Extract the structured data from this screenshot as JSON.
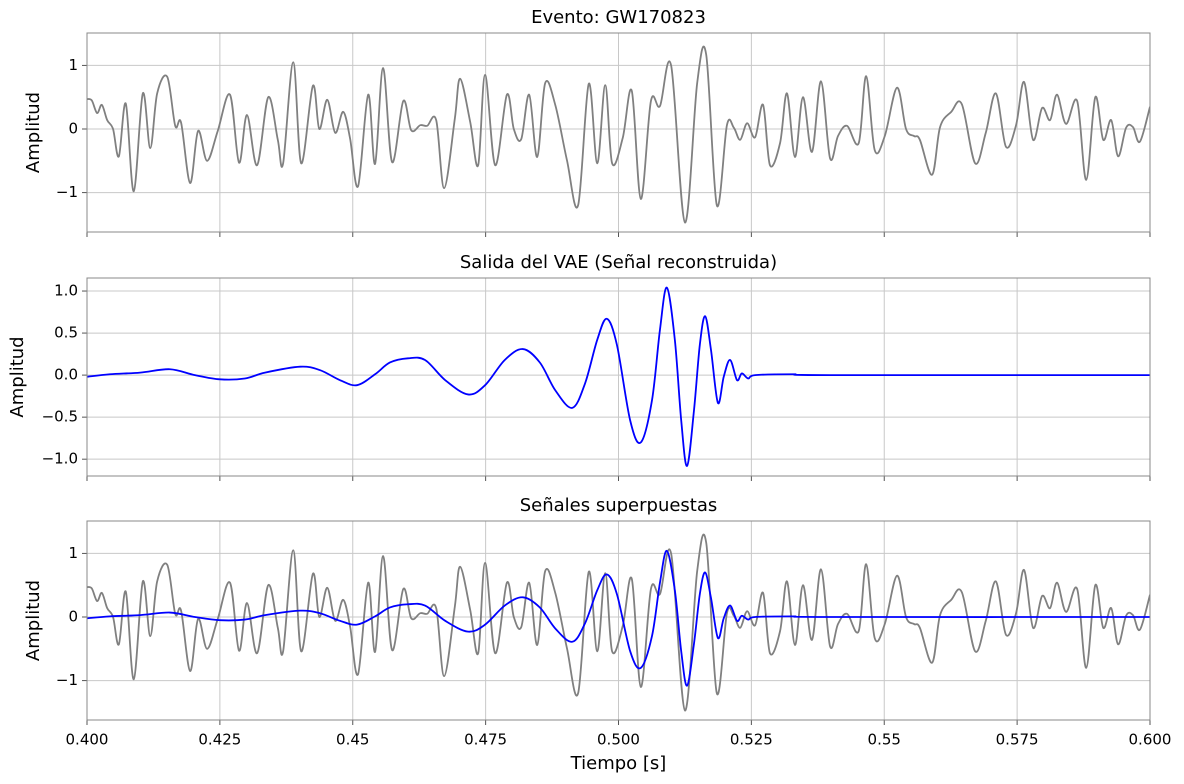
{
  "chart_data": [
    {
      "type": "line",
      "title": "Evento: GW170823",
      "ylabel": "Amplitud",
      "xlim": [
        0.4,
        0.6
      ],
      "ylim": [
        -1.62,
        1.51
      ],
      "xticks": [
        0.4,
        0.425,
        0.45,
        0.475,
        0.5,
        0.525,
        0.55,
        0.575,
        0.6
      ],
      "yticks": [
        {
          "value": -1,
          "label": "−1"
        },
        0,
        1
      ],
      "grid": true,
      "series": [
        {
          "color": "#808080",
          "x": [
            0.4,
            0.4009,
            0.4019,
            0.4028,
            0.4038,
            0.4049,
            0.406,
            0.4073,
            0.4088,
            0.4105,
            0.4119,
            0.4132,
            0.4151,
            0.4166,
            0.4177,
            0.4194,
            0.4209,
            0.4226,
            0.4246,
            0.4269,
            0.4286,
            0.4301,
            0.432,
            0.4341,
            0.4359,
            0.4369,
            0.4388,
            0.4403,
            0.4425,
            0.4437,
            0.4452,
            0.4467,
            0.4482,
            0.4495,
            0.451,
            0.4529,
            0.4542,
            0.4557,
            0.4574,
            0.4595,
            0.461,
            0.4627,
            0.464,
            0.4657,
            0.4672,
            0.4692,
            0.4702,
            0.4721,
            0.4736,
            0.4749,
            0.4768,
            0.479,
            0.4803,
            0.4817,
            0.4832,
            0.4847,
            0.4862,
            0.4881,
            0.4903,
            0.4924,
            0.4944,
            0.496,
            0.4975,
            0.4988,
            0.5008,
            0.5025,
            0.5042,
            0.5061,
            0.5078,
            0.5099,
            0.5125,
            0.5148,
            0.5165,
            0.5185,
            0.5204,
            0.5217,
            0.5229,
            0.5242,
            0.5257,
            0.5272,
            0.5285,
            0.5304,
            0.5317,
            0.5332,
            0.5347,
            0.5364,
            0.5381,
            0.5398,
            0.5413,
            0.543,
            0.5452,
            0.5466,
            0.5482,
            0.5501,
            0.5524,
            0.5541,
            0.5556,
            0.5567,
            0.559,
            0.5605,
            0.5626,
            0.5646,
            0.5671,
            0.5691,
            0.571,
            0.5729,
            0.5748,
            0.5763,
            0.578,
            0.5797,
            0.5812,
            0.5825,
            0.5842,
            0.5863,
            0.588,
            0.5897,
            0.5912,
            0.5927,
            0.594,
            0.5955,
            0.5968,
            0.5981,
            0.6
          ],
          "values": [
            0.47,
            0.45,
            0.25,
            0.38,
            0.14,
            0.0,
            -0.43,
            0.4,
            -0.98,
            0.56,
            -0.3,
            0.56,
            0.82,
            0.05,
            0.1,
            -0.85,
            -0.03,
            -0.5,
            -0.03,
            0.54,
            -0.53,
            0.22,
            -0.57,
            0.5,
            -0.17,
            -0.54,
            1.05,
            -0.54,
            0.68,
            0.0,
            0.46,
            -0.06,
            0.27,
            -0.15,
            -0.9,
            0.54,
            -0.55,
            0.96,
            -0.52,
            0.44,
            -0.02,
            0.06,
            0.05,
            0.14,
            -0.93,
            0.16,
            0.79,
            0.11,
            -0.57,
            0.85,
            -0.57,
            0.54,
            0.0,
            -0.16,
            0.54,
            -0.44,
            0.72,
            0.38,
            -0.49,
            -1.2,
            0.71,
            -0.54,
            0.69,
            -0.54,
            -0.14,
            0.6,
            -1.1,
            0.44,
            0.36,
            1.0,
            -1.47,
            0.72,
            1.17,
            -1.2,
            0.06,
            0.02,
            -0.17,
            0.09,
            -0.13,
            0.38,
            -0.57,
            -0.22,
            0.56,
            -0.44,
            0.5,
            -0.36,
            0.75,
            -0.46,
            -0.11,
            0.05,
            -0.22,
            0.83,
            -0.33,
            -0.11,
            0.65,
            0.0,
            -0.11,
            -0.17,
            -0.72,
            0.03,
            0.27,
            0.39,
            -0.54,
            -0.06,
            0.56,
            -0.28,
            0.06,
            0.74,
            -0.17,
            0.33,
            0.14,
            0.54,
            0.08,
            0.44,
            -0.8,
            0.5,
            -0.17,
            0.14,
            -0.43,
            0.02,
            0.03,
            -0.2,
            0.35
          ]
        }
      ]
    },
    {
      "type": "line",
      "title": "Salida del VAE (Señal reconstruida)",
      "ylabel": "Amplitud",
      "xlim": [
        0.4,
        0.6
      ],
      "ylim": [
        -1.2,
        1.155
      ],
      "xticks": [
        0.4,
        0.425,
        0.45,
        0.475,
        0.5,
        0.525,
        0.55,
        0.575,
        0.6
      ],
      "yticks": [
        {
          "value": -1,
          "label": "−1.0"
        },
        {
          "value": -0.5,
          "label": "−0.5"
        },
        {
          "value": 0,
          "label": "0.0"
        },
        0.5,
        {
          "value": 1,
          "label": "1.0"
        }
      ],
      "grid": true,
      "series": [
        {
          "color": "#0000ff",
          "x": [
            0.4,
            0.4043,
            0.41,
            0.4156,
            0.4203,
            0.425,
            0.4297,
            0.4335,
            0.4401,
            0.4438,
            0.4476,
            0.4508,
            0.4542,
            0.457,
            0.4604,
            0.4636,
            0.4674,
            0.4717,
            0.4749,
            0.4786,
            0.482,
            0.4852,
            0.4881,
            0.4913,
            0.4937,
            0.496,
            0.4978,
            0.4997,
            0.5022,
            0.5042,
            0.5063,
            0.5078,
            0.5091,
            0.5106,
            0.5118,
            0.5129,
            0.5142,
            0.5153,
            0.5163,
            0.5174,
            0.5187,
            0.5198,
            0.521,
            0.5223,
            0.5232,
            0.5244,
            0.5257,
            0.5328,
            0.5398,
            0.6
          ],
          "values": [
            -0.02,
            0.01,
            0.03,
            0.07,
            0.0,
            -0.05,
            -0.04,
            0.03,
            0.1,
            0.06,
            -0.06,
            -0.12,
            0.01,
            0.15,
            0.2,
            0.18,
            -0.06,
            -0.23,
            -0.12,
            0.18,
            0.31,
            0.15,
            -0.18,
            -0.39,
            -0.1,
            0.42,
            0.67,
            0.36,
            -0.54,
            -0.8,
            -0.3,
            0.54,
            1.04,
            0.42,
            -0.54,
            -1.08,
            -0.42,
            0.36,
            0.7,
            0.3,
            -0.33,
            -0.02,
            0.18,
            -0.06,
            0.02,
            -0.04,
            0.0,
            0.01,
            0.0,
            0.0
          ]
        }
      ]
    },
    {
      "type": "line",
      "title": "Señales superpuestas",
      "ylabel": "Amplitud",
      "xlabel": "Tiempo [s]",
      "xlim": [
        0.4,
        0.6
      ],
      "ylim": [
        -1.62,
        1.51
      ],
      "xticks": [
        {
          "value": 0.4,
          "label": "0.400"
        },
        0.425,
        0.45,
        0.475,
        {
          "value": 0.5,
          "label": "0.500"
        },
        0.525,
        0.55,
        0.575,
        {
          "value": 0.6,
          "label": "0.600"
        }
      ],
      "yticks": [
        {
          "value": -1,
          "label": "−1"
        },
        0,
        1
      ],
      "grid": true,
      "series": [
        {
          "color": "#808080",
          "x": [
            0.4,
            0.4009,
            0.4019,
            0.4028,
            0.4038,
            0.4049,
            0.406,
            0.4073,
            0.4088,
            0.4105,
            0.4119,
            0.4132,
            0.4151,
            0.4166,
            0.4177,
            0.4194,
            0.4209,
            0.4226,
            0.4246,
            0.4269,
            0.4286,
            0.4301,
            0.432,
            0.4341,
            0.4359,
            0.4369,
            0.4388,
            0.4403,
            0.4425,
            0.4437,
            0.4452,
            0.4467,
            0.4482,
            0.4495,
            0.451,
            0.4529,
            0.4542,
            0.4557,
            0.4574,
            0.4595,
            0.461,
            0.4627,
            0.464,
            0.4657,
            0.4672,
            0.4692,
            0.4702,
            0.4721,
            0.4736,
            0.4749,
            0.4768,
            0.479,
            0.4803,
            0.4817,
            0.4832,
            0.4847,
            0.4862,
            0.4881,
            0.4903,
            0.4924,
            0.4944,
            0.496,
            0.4975,
            0.4988,
            0.5008,
            0.5025,
            0.5042,
            0.5061,
            0.5078,
            0.5099,
            0.5125,
            0.5148,
            0.5165,
            0.5185,
            0.5204,
            0.5217,
            0.5229,
            0.5242,
            0.5257,
            0.5272,
            0.5285,
            0.5304,
            0.5317,
            0.5332,
            0.5347,
            0.5364,
            0.5381,
            0.5398,
            0.5413,
            0.543,
            0.5452,
            0.5466,
            0.5482,
            0.5501,
            0.5524,
            0.5541,
            0.5556,
            0.5567,
            0.559,
            0.5605,
            0.5626,
            0.5646,
            0.5671,
            0.5691,
            0.571,
            0.5729,
            0.5748,
            0.5763,
            0.578,
            0.5797,
            0.5812,
            0.5825,
            0.5842,
            0.5863,
            0.588,
            0.5897,
            0.5912,
            0.5927,
            0.594,
            0.5955,
            0.5968,
            0.5981,
            0.6
          ],
          "values": [
            0.47,
            0.45,
            0.25,
            0.38,
            0.14,
            0.0,
            -0.43,
            0.4,
            -0.98,
            0.56,
            -0.3,
            0.56,
            0.82,
            0.05,
            0.1,
            -0.85,
            -0.03,
            -0.5,
            -0.03,
            0.54,
            -0.53,
            0.22,
            -0.57,
            0.5,
            -0.17,
            -0.54,
            1.05,
            -0.54,
            0.68,
            0.0,
            0.46,
            -0.06,
            0.27,
            -0.15,
            -0.9,
            0.54,
            -0.55,
            0.96,
            -0.52,
            0.44,
            -0.02,
            0.06,
            0.05,
            0.14,
            -0.93,
            0.16,
            0.79,
            0.11,
            -0.57,
            0.85,
            -0.57,
            0.54,
            0.0,
            -0.16,
            0.54,
            -0.44,
            0.72,
            0.38,
            -0.49,
            -1.2,
            0.71,
            -0.54,
            0.69,
            -0.54,
            -0.14,
            0.6,
            -1.1,
            0.44,
            0.36,
            1.0,
            -1.47,
            0.72,
            1.17,
            -1.2,
            0.06,
            0.02,
            -0.17,
            0.09,
            -0.13,
            0.38,
            -0.57,
            -0.22,
            0.56,
            -0.44,
            0.5,
            -0.36,
            0.75,
            -0.46,
            -0.11,
            0.05,
            -0.22,
            0.83,
            -0.33,
            -0.11,
            0.65,
            0.0,
            -0.11,
            -0.17,
            -0.72,
            0.03,
            0.27,
            0.39,
            -0.54,
            -0.06,
            0.56,
            -0.28,
            0.06,
            0.74,
            -0.17,
            0.33,
            0.14,
            0.54,
            0.08,
            0.44,
            -0.8,
            0.5,
            -0.17,
            0.14,
            -0.43,
            0.02,
            0.03,
            -0.2,
            0.35
          ]
        },
        {
          "color": "#0000ff",
          "x": [
            0.4,
            0.4043,
            0.41,
            0.4156,
            0.4203,
            0.425,
            0.4297,
            0.4335,
            0.4401,
            0.4438,
            0.4476,
            0.4508,
            0.4542,
            0.457,
            0.4604,
            0.4636,
            0.4674,
            0.4717,
            0.4749,
            0.4786,
            0.482,
            0.4852,
            0.4881,
            0.4913,
            0.4937,
            0.496,
            0.4978,
            0.4997,
            0.5022,
            0.5042,
            0.5063,
            0.5078,
            0.5091,
            0.5106,
            0.5118,
            0.5129,
            0.5142,
            0.5153,
            0.5163,
            0.5174,
            0.5187,
            0.5198,
            0.521,
            0.5223,
            0.5232,
            0.5244,
            0.5257,
            0.5328,
            0.5398,
            0.6
          ],
          "values": [
            -0.02,
            0.01,
            0.03,
            0.07,
            0.0,
            -0.05,
            -0.04,
            0.03,
            0.1,
            0.06,
            -0.06,
            -0.12,
            0.01,
            0.15,
            0.2,
            0.18,
            -0.06,
            -0.23,
            -0.12,
            0.18,
            0.31,
            0.15,
            -0.18,
            -0.39,
            -0.1,
            0.42,
            0.67,
            0.36,
            -0.54,
            -0.8,
            -0.3,
            0.54,
            1.04,
            0.42,
            -0.54,
            -1.08,
            -0.42,
            0.36,
            0.7,
            0.3,
            -0.33,
            -0.02,
            0.18,
            -0.06,
            0.02,
            -0.04,
            0.0,
            0.01,
            0.0,
            0.0
          ]
        }
      ]
    }
  ]
}
